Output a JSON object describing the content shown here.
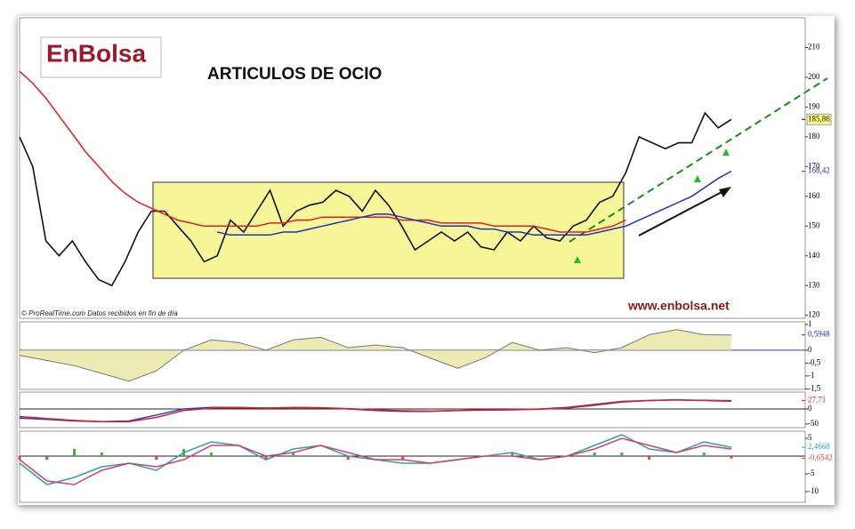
{
  "logo": "EnBolsa",
  "chart_data": [
    {
      "type": "line",
      "title": "ARTICULOS DE OCIO",
      "annotations": [
        "www.enbolsa.net",
        "© ProRealTime.com Datos recibidos en fin de día"
      ],
      "ylim": [
        119,
        220
      ],
      "yticks": [
        120,
        130,
        140,
        150,
        160,
        170,
        180,
        190,
        200,
        210
      ],
      "series": [
        {
          "color": "#111111",
          "values": [
            180,
            170,
            145,
            140,
            145,
            138,
            132,
            130,
            138,
            148,
            155,
            155,
            150,
            145,
            138,
            140,
            152,
            148,
            155,
            162,
            150,
            155,
            157,
            158,
            162,
            160,
            155,
            162,
            157,
            150,
            142,
            145,
            148,
            145,
            148,
            143,
            142,
            148,
            145,
            150,
            146,
            145,
            150,
            152,
            158,
            160,
            168,
            180,
            178,
            176,
            178,
            178,
            188,
            183,
            185.86
          ],
          "last_value": {
            "value": 185.86,
            "label": "185,86"
          }
        },
        {
          "color": "#e02020",
          "values": [
            202,
            198,
            193,
            187,
            181,
            175,
            170,
            165,
            161,
            158,
            156,
            154,
            152,
            151,
            150,
            150,
            150,
            150,
            150,
            151,
            151,
            152,
            152,
            153,
            153,
            153,
            153,
            153,
            153,
            152,
            152,
            152,
            151,
            151,
            151,
            151,
            150,
            150,
            150,
            150,
            149,
            148,
            148,
            148,
            149,
            150,
            152,
            null,
            null,
            null,
            null,
            null,
            null,
            null,
            null
          ]
        },
        {
          "color": "#2030c0",
          "values": [
            null,
            null,
            null,
            null,
            null,
            null,
            null,
            null,
            null,
            null,
            null,
            null,
            null,
            null,
            null,
            148,
            147,
            147,
            147,
            147,
            148,
            148,
            149,
            150,
            151,
            152,
            153,
            154,
            154,
            153,
            152,
            151,
            150,
            150,
            150,
            149,
            149,
            148,
            148,
            147,
            147,
            147,
            147,
            147,
            148,
            149,
            150,
            152,
            154,
            156,
            158,
            160,
            163,
            166,
            168.42
          ],
          "last_value": {
            "value": 168.42,
            "label": "168,42"
          }
        }
      ]
    },
    {
      "type": "area",
      "ylim": [
        -1.52,
        1.1
      ],
      "yticks": [
        1,
        0,
        {
          "value": -0.5,
          "label": "-0,5"
        },
        -1,
        {
          "value": -1.5,
          "label": "-1,5"
        }
      ],
      "series": [
        {
          "color": "#2030c0",
          "values": [
            -0.2,
            -0.4,
            -0.6,
            -0.9,
            -1.2,
            -0.8,
            0.0,
            0.4,
            0.3,
            0.0,
            0.4,
            0.5,
            0.1,
            0.2,
            0.1,
            -0.3,
            -0.7,
            -0.3,
            0.3,
            0.0,
            0.1,
            -0.1,
            0.1,
            0.6,
            0.8,
            0.6,
            0.5948
          ],
          "last_value": {
            "value": 0.5948,
            "label": "0,5948"
          }
        }
      ]
    },
    {
      "type": "line",
      "ylim": [
        -62,
        56
      ],
      "yticks": [
        0,
        -50
      ],
      "series": [
        {
          "color": "#2040d0",
          "values": [
            -30,
            -35,
            -40,
            -42,
            -40,
            -20,
            0,
            5,
            5,
            3,
            5,
            4,
            0,
            -5,
            -8,
            -8,
            -5,
            -3,
            -2,
            0,
            5,
            15,
            25,
            28,
            30,
            28,
            26
          ]
        },
        {
          "color": "#e02020",
          "values": [
            -25,
            -32,
            -38,
            -42,
            -42,
            -28,
            -5,
            3,
            4,
            3,
            4,
            4,
            1,
            -3,
            -6,
            -7,
            -5,
            -4,
            -3,
            -1,
            3,
            12,
            23,
            28,
            30,
            29,
            27.71
          ],
          "last_value": {
            "value": 27.71,
            "label": "27,71"
          }
        }
      ]
    },
    {
      "type": "line",
      "ylim": [
        -13,
        7
      ],
      "yticks": [
        5,
        -5,
        -10
      ],
      "series": [
        {
          "kind": "bar",
          "color": "#e04040",
          "values": [
            -1,
            -1,
            2,
            1,
            0,
            -1,
            2,
            1,
            0,
            -1,
            1,
            0,
            -1,
            0,
            -1,
            0,
            0,
            0,
            1,
            0,
            0,
            1,
            1,
            -1,
            0,
            1,
            -0.6542
          ],
          "last_value": {
            "value": -0.6542,
            "label": "-0,6542"
          }
        },
        {
          "color": "#30a0a0",
          "values": [
            -2,
            -8,
            -6,
            -3,
            -2,
            -4,
            1,
            4,
            3,
            -1,
            2,
            3,
            0,
            -1,
            -2,
            -2,
            -1,
            0,
            1,
            -1,
            0,
            3,
            6,
            2,
            1,
            4,
            2.4668
          ],
          "last_value": {
            "value": 2.4668,
            "label": "2,4668"
          }
        },
        {
          "color": "#d04070",
          "values": [
            -1,
            -7,
            -8,
            -4,
            -2,
            -3,
            -1,
            3,
            3,
            0,
            1,
            3,
            1,
            -1,
            -1,
            -2,
            -1,
            0,
            0,
            -1,
            0,
            2,
            5,
            3,
            1,
            3,
            2
          ]
        }
      ]
    }
  ]
}
